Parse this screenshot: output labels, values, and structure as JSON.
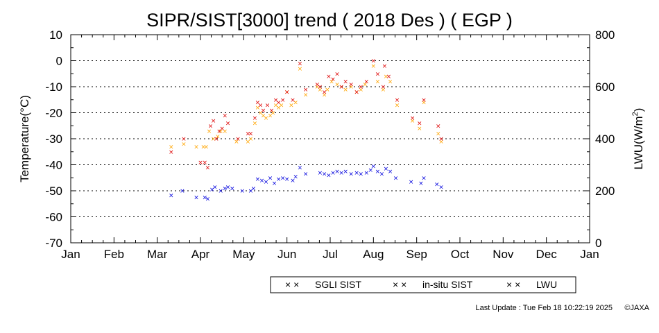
{
  "chart_data": {
    "type": "scatter",
    "title": "SIPR/SIST[3000] trend ( 2018 Des ) ( EGP )",
    "ylabel": "Temperature(°C)",
    "y2label_main": "LWU(W/m",
    "y2label_sup": "2",
    "y2label_end": ")",
    "ylim": [
      -70,
      10
    ],
    "y2lim": [
      0,
      800
    ],
    "yticks": [
      "10",
      "0",
      "-10",
      "-20",
      "-30",
      "-40",
      "-50",
      "-60",
      "-70"
    ],
    "y2ticks": [
      "800",
      "600",
      "400",
      "200",
      "0"
    ],
    "months": [
      "Jan",
      "Feb",
      "Mar",
      "Apr",
      "May",
      "Jun",
      "Jul",
      "Aug",
      "Sep",
      "Oct",
      "Nov",
      "Dec",
      "Jan"
    ],
    "grid": "horizontal dotted at every 10 °C",
    "legend_position": "bottom-right",
    "series": [
      {
        "name": "SGLI SIST",
        "color": "#ffa500",
        "axis": "left",
        "points": [
          [
            "2018-03-11",
            -33
          ],
          [
            "2018-03-20",
            -32
          ],
          [
            "2018-03-29",
            -33
          ],
          [
            "2018-04-03",
            -33
          ],
          [
            "2018-04-05",
            -33
          ],
          [
            "2018-04-07",
            -27
          ],
          [
            "2018-04-10",
            -30
          ],
          [
            "2018-04-13",
            -29
          ],
          [
            "2018-04-15",
            -27
          ],
          [
            "2018-04-18",
            -27
          ],
          [
            "2018-04-26",
            -31
          ],
          [
            "2018-05-04",
            -31
          ],
          [
            "2018-05-06",
            -30
          ],
          [
            "2018-05-09",
            -24
          ],
          [
            "2018-05-11",
            -18
          ],
          [
            "2018-05-13",
            -20
          ],
          [
            "2018-05-15",
            -21
          ],
          [
            "2018-05-17",
            -22
          ],
          [
            "2018-05-20",
            -21
          ],
          [
            "2018-05-22",
            -20
          ],
          [
            "2018-05-24",
            -17
          ],
          [
            "2018-05-26",
            -18
          ],
          [
            "2018-05-28",
            -17
          ],
          [
            "2018-06-01",
            -12
          ],
          [
            "2018-06-04",
            -17
          ],
          [
            "2018-06-07",
            -16
          ],
          [
            "2018-06-10",
            -3
          ],
          [
            "2018-06-14",
            -13
          ],
          [
            "2018-06-22",
            -10
          ],
          [
            "2018-06-24",
            -11
          ],
          [
            "2018-06-27",
            -13
          ],
          [
            "2018-06-29",
            -11
          ],
          [
            "2018-07-02",
            -8
          ],
          [
            "2018-07-06",
            -9
          ],
          [
            "2018-07-09",
            -10
          ],
          [
            "2018-07-12",
            -11
          ],
          [
            "2018-07-16",
            -10
          ],
          [
            "2018-07-20",
            -12
          ],
          [
            "2018-07-23",
            -11
          ],
          [
            "2018-07-26",
            -9
          ],
          [
            "2018-08-01",
            -2
          ],
          [
            "2018-08-04",
            -8
          ],
          [
            "2018-08-08",
            -11
          ],
          [
            "2018-08-10",
            -6
          ],
          [
            "2018-08-13",
            -8
          ],
          [
            "2018-08-18",
            -17
          ],
          [
            "2018-08-29",
            -23
          ],
          [
            "2018-09-03",
            -26
          ],
          [
            "2018-09-06",
            -16
          ],
          [
            "2018-09-16",
            -28
          ],
          [
            "2018-09-18",
            -31
          ]
        ]
      },
      {
        "name": "in-situ SIST",
        "color": "#dd0000",
        "axis": "left",
        "points": [
          [
            "2018-03-11",
            -35
          ],
          [
            "2018-03-20",
            -30
          ],
          [
            "2018-04-01",
            -39
          ],
          [
            "2018-04-04",
            -39
          ],
          [
            "2018-04-06",
            -41
          ],
          [
            "2018-04-08",
            -25
          ],
          [
            "2018-04-10",
            -23
          ],
          [
            "2018-04-12",
            -30
          ],
          [
            "2018-04-14",
            -27
          ],
          [
            "2018-04-16",
            -26
          ],
          [
            "2018-04-18",
            -21
          ],
          [
            "2018-04-20",
            -24
          ],
          [
            "2018-04-27",
            -30
          ],
          [
            "2018-05-04",
            -28
          ],
          [
            "2018-05-06",
            -28
          ],
          [
            "2018-05-09",
            -22
          ],
          [
            "2018-05-11",
            -16
          ],
          [
            "2018-05-13",
            -17
          ],
          [
            "2018-05-15",
            -19
          ],
          [
            "2018-05-18",
            -17
          ],
          [
            "2018-05-21",
            -19
          ],
          [
            "2018-05-24",
            -15
          ],
          [
            "2018-05-26",
            -16
          ],
          [
            "2018-05-29",
            -15
          ],
          [
            "2018-06-01",
            -12
          ],
          [
            "2018-06-05",
            -15
          ],
          [
            "2018-06-10",
            -1
          ],
          [
            "2018-06-14",
            -11
          ],
          [
            "2018-06-22",
            -9
          ],
          [
            "2018-06-24",
            -10
          ],
          [
            "2018-06-27",
            -12
          ],
          [
            "2018-06-30",
            -6
          ],
          [
            "2018-07-03",
            -7
          ],
          [
            "2018-07-06",
            -5
          ],
          [
            "2018-07-09",
            -10
          ],
          [
            "2018-07-12",
            -8
          ],
          [
            "2018-07-16",
            -9
          ],
          [
            "2018-07-20",
            -12
          ],
          [
            "2018-07-23",
            -10
          ],
          [
            "2018-07-27",
            -8
          ],
          [
            "2018-08-01",
            0
          ],
          [
            "2018-08-04",
            -5
          ],
          [
            "2018-08-08",
            -10
          ],
          [
            "2018-08-09",
            -2
          ],
          [
            "2018-08-12",
            -6
          ],
          [
            "2018-08-18",
            -15
          ],
          [
            "2018-08-29",
            -22
          ],
          [
            "2018-09-03",
            -24
          ],
          [
            "2018-09-06",
            -15
          ],
          [
            "2018-09-16",
            -25
          ],
          [
            "2018-09-18",
            -30
          ]
        ]
      },
      {
        "name": "LWU",
        "color": "#0000dd",
        "axis": "right",
        "points": [
          [
            "2018-03-11",
            183
          ],
          [
            "2018-03-19",
            200
          ],
          [
            "2018-03-29",
            175
          ],
          [
            "2018-04-04",
            175
          ],
          [
            "2018-04-06",
            170
          ],
          [
            "2018-04-09",
            205
          ],
          [
            "2018-04-11",
            215
          ],
          [
            "2018-04-15",
            200
          ],
          [
            "2018-04-18",
            210
          ],
          [
            "2018-04-20",
            215
          ],
          [
            "2018-04-23",
            210
          ],
          [
            "2018-04-30",
            200
          ],
          [
            "2018-05-06",
            200
          ],
          [
            "2018-05-08",
            210
          ],
          [
            "2018-05-11",
            245
          ],
          [
            "2018-05-14",
            240
          ],
          [
            "2018-05-17",
            235
          ],
          [
            "2018-05-20",
            250
          ],
          [
            "2018-05-23",
            230
          ],
          [
            "2018-05-26",
            245
          ],
          [
            "2018-05-29",
            250
          ],
          [
            "2018-06-01",
            245
          ],
          [
            "2018-06-05",
            240
          ],
          [
            "2018-06-07",
            255
          ],
          [
            "2018-06-10",
            290
          ],
          [
            "2018-06-14",
            265
          ],
          [
            "2018-06-24",
            270
          ],
          [
            "2018-06-27",
            265
          ],
          [
            "2018-06-30",
            260
          ],
          [
            "2018-07-03",
            270
          ],
          [
            "2018-07-06",
            275
          ],
          [
            "2018-07-09",
            270
          ],
          [
            "2018-07-12",
            275
          ],
          [
            "2018-07-16",
            265
          ],
          [
            "2018-07-20",
            270
          ],
          [
            "2018-07-23",
            265
          ],
          [
            "2018-07-27",
            270
          ],
          [
            "2018-07-30",
            280
          ],
          [
            "2018-08-01",
            295
          ],
          [
            "2018-08-04",
            275
          ],
          [
            "2018-08-07",
            265
          ],
          [
            "2018-08-10",
            285
          ],
          [
            "2018-08-13",
            275
          ],
          [
            "2018-08-17",
            250
          ],
          [
            "2018-08-28",
            235
          ],
          [
            "2018-09-04",
            230
          ],
          [
            "2018-09-06",
            250
          ],
          [
            "2018-09-15",
            225
          ],
          [
            "2018-09-18",
            215
          ]
        ]
      }
    ]
  },
  "footer": {
    "last_update": "Last Update : Tue Feb 18 10:22:19 2025",
    "copyright": "©JAXA"
  }
}
